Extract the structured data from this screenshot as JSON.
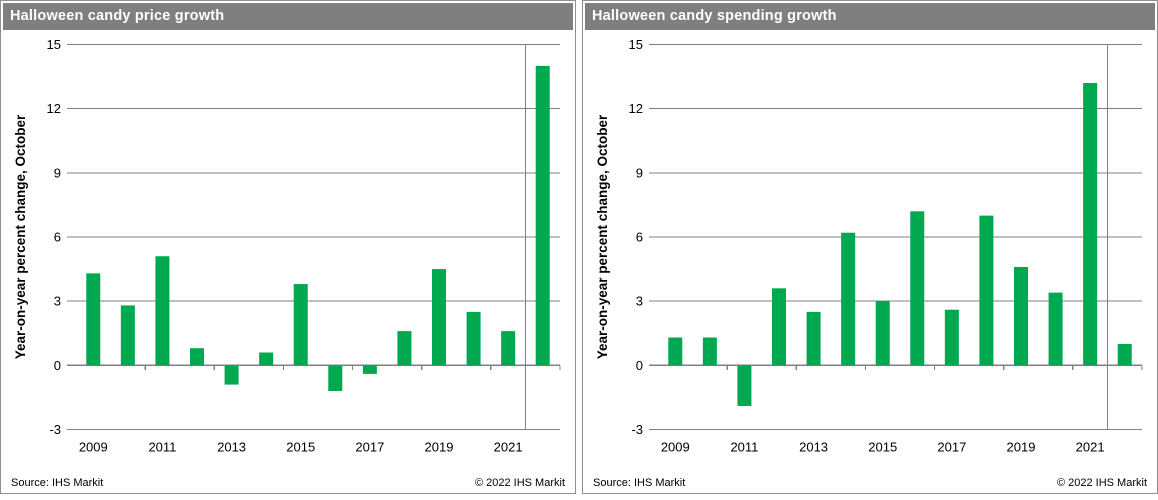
{
  "colors": {
    "title_bar": "#7f7f7f",
    "bar_green": "#00a84f",
    "grid_gray": "#808080",
    "text_black": "#000000",
    "title_text": "#ffffff"
  },
  "panels": [
    {
      "title": "Halloween candy price growth",
      "source": "Source:  IHS Markit",
      "copyright": "© 2022  IHS Markit"
    },
    {
      "title": "Halloween candy spending growth",
      "source": "Source:  IHS Markit",
      "copyright": "© 2022  IHS Markit"
    }
  ],
  "chart_data": [
    {
      "type": "bar",
      "title": "Halloween candy price growth",
      "categories": [
        "2009",
        "2010",
        "2011",
        "2012",
        "2013",
        "2014",
        "2015",
        "2016",
        "2017",
        "2018",
        "2019",
        "2020",
        "2021",
        "2022"
      ],
      "values": [
        4.3,
        2.8,
        5.1,
        0.8,
        -0.9,
        0.6,
        3.8,
        -1.2,
        -0.4,
        1.6,
        4.5,
        2.5,
        1.6,
        14.0
      ],
      "xlabel": "",
      "ylabel": "Year-on-year percent change, October",
      "ylim": [
        -3,
        15
      ],
      "yticks": [
        15,
        12,
        9,
        6,
        3,
        0,
        -3
      ],
      "xtick_labels": [
        "2009",
        "2011",
        "2013",
        "2015",
        "2017",
        "2019",
        "2021"
      ],
      "grid": true,
      "legend": false,
      "bar_color": "#00a84f",
      "divider_before_last_category": true
    },
    {
      "type": "bar",
      "title": "Halloween candy spending growth",
      "categories": [
        "2009",
        "2010",
        "2011",
        "2012",
        "2013",
        "2014",
        "2015",
        "2016",
        "2017",
        "2018",
        "2019",
        "2020",
        "2021",
        "2022"
      ],
      "values": [
        1.3,
        1.3,
        -1.9,
        3.6,
        2.5,
        6.2,
        3.0,
        7.2,
        2.6,
        7.0,
        4.6,
        3.4,
        13.2,
        1.0
      ],
      "xlabel": "",
      "ylabel": "Year-on-year percent change, October",
      "ylim": [
        -3,
        15
      ],
      "yticks": [
        15,
        12,
        9,
        6,
        3,
        0,
        -3
      ],
      "xtick_labels": [
        "2009",
        "2011",
        "2013",
        "2015",
        "2017",
        "2019",
        "2021"
      ],
      "grid": true,
      "legend": false,
      "bar_color": "#00a84f",
      "divider_before_last_category": true
    }
  ]
}
